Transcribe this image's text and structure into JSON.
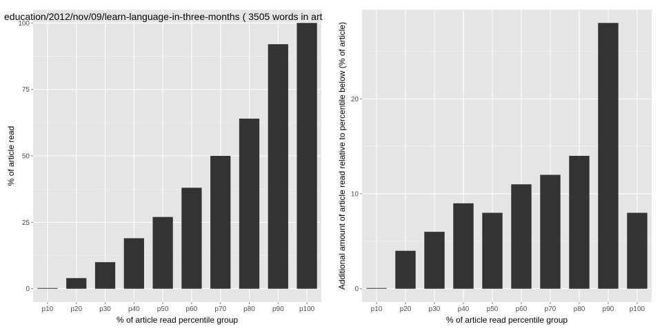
{
  "chart_data": [
    {
      "type": "bar",
      "title": "education/2012/nov/09/learn-language-in-three-months ( 3505 words in art",
      "xlabel": "% of article read percentile group",
      "ylabel": "% of article read",
      "categories": [
        "p10",
        "p20",
        "p30",
        "p40",
        "p50",
        "p60",
        "p70",
        "p80",
        "p90",
        "p100"
      ],
      "values": [
        0,
        4,
        10,
        19,
        27,
        38,
        50,
        64,
        92,
        100
      ],
      "ylim": [
        -5,
        105
      ],
      "yticks": [
        0,
        25,
        50,
        75,
        100
      ],
      "grid": true,
      "bar_color": "#333333",
      "panel_color": "#e5e5e5"
    },
    {
      "type": "bar",
      "title": "",
      "xlabel": "% of article read percentile group",
      "ylabel": "Additional amount of article read relative to percentile below (% of article)",
      "categories": [
        "p10",
        "p20",
        "p30",
        "p40",
        "p50",
        "p60",
        "p70",
        "p80",
        "p90",
        "p100"
      ],
      "values": [
        0,
        4,
        6,
        9,
        8,
        11,
        12,
        14,
        28,
        8
      ],
      "ylim": [
        -1.4,
        29.4
      ],
      "yticks": [
        0,
        10,
        20
      ],
      "grid": true,
      "bar_color": "#333333",
      "panel_color": "#e5e5e5"
    }
  ]
}
